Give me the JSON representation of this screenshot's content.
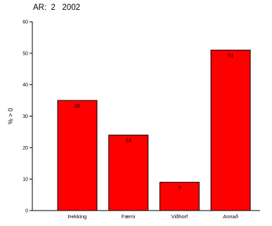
{
  "chart_data": {
    "type": "bar",
    "title": "AR:  2   2002",
    "xlabel": "",
    "ylabel": "% > 0",
    "categories": [
      "Þekking",
      "Færni",
      "Viðhorf",
      "Annað"
    ],
    "values": [
      35,
      24,
      9,
      51
    ],
    "data_labels": [
      "35",
      "24",
      "9",
      "51"
    ],
    "ylim": [
      0,
      60
    ],
    "yticks": [
      0,
      10,
      20,
      30,
      40,
      50,
      60
    ],
    "grid": false,
    "legend": "none",
    "bar_color": "#ff0000",
    "bar_stroke": "#000000"
  }
}
